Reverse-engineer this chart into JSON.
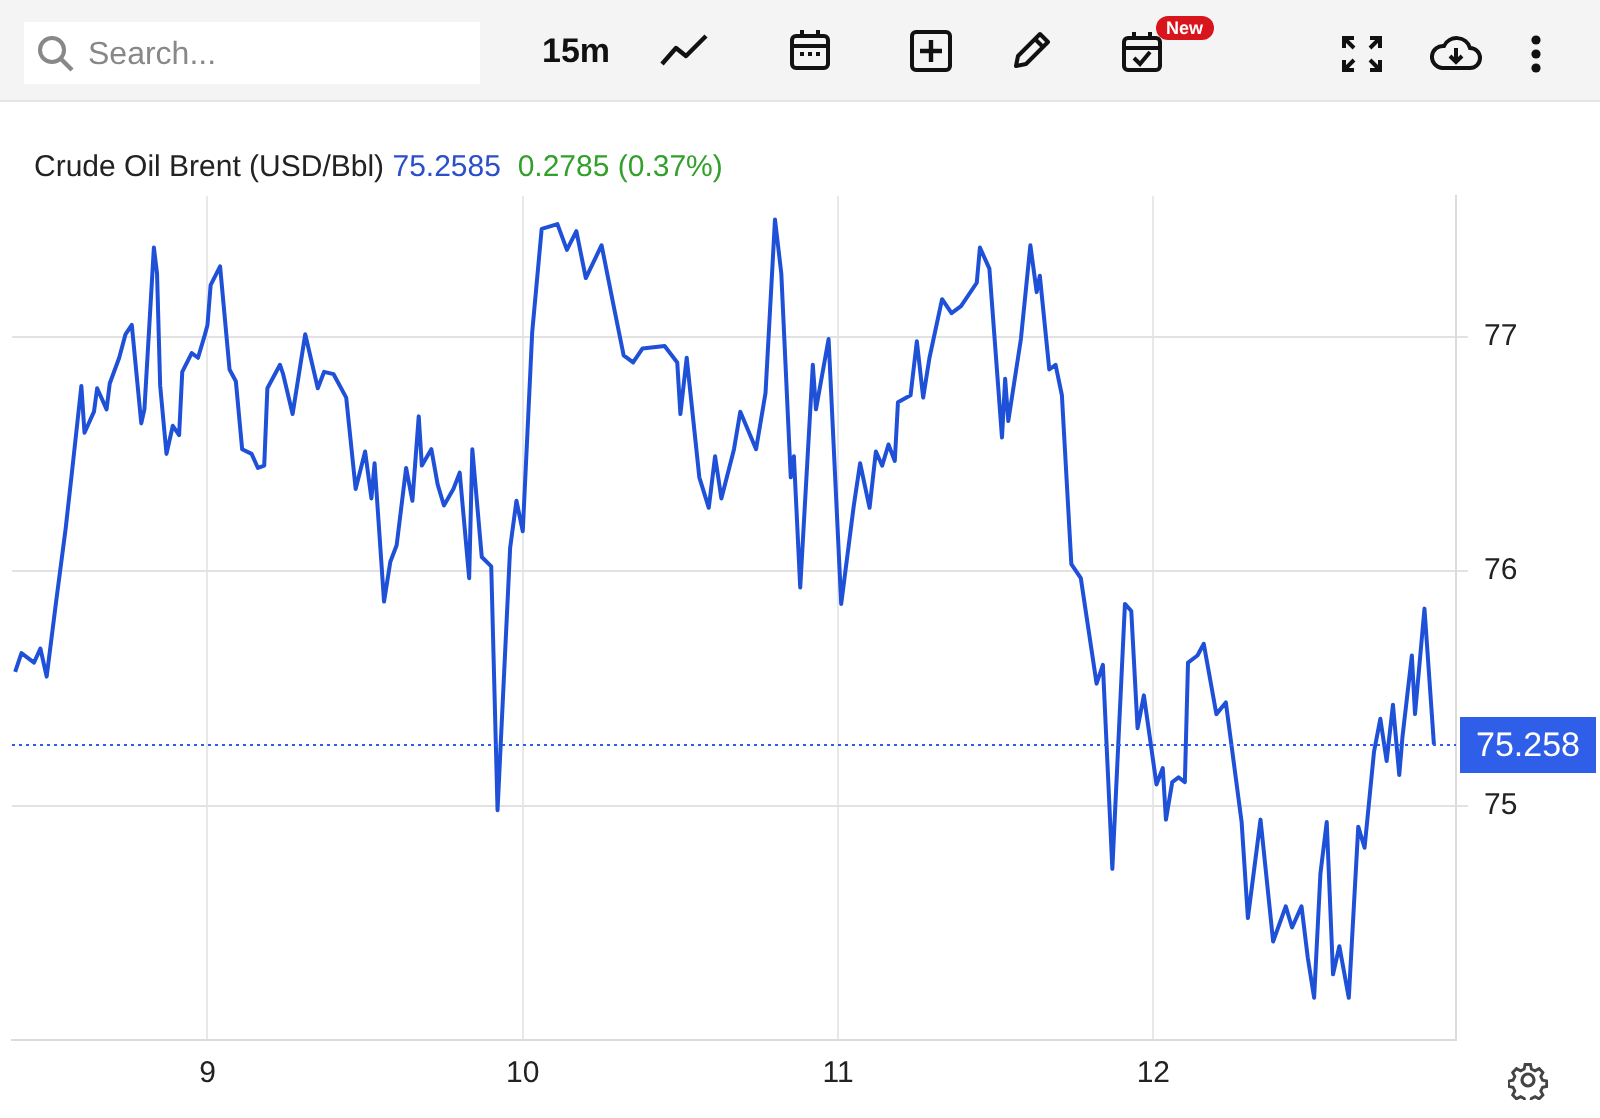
{
  "chart_data": {
    "type": "line",
    "title": "Crude Oil Brent (USD/Bbl)",
    "annotations": [
      "75.2585",
      "0.2785 (0.37%)",
      "Search...",
      "15m",
      "New"
    ],
    "x": [
      8.39,
      8.41,
      8.45,
      8.47,
      8.49,
      8.52,
      8.55,
      8.57,
      8.6,
      8.61,
      8.64,
      8.65,
      8.68,
      8.69,
      8.72,
      8.74,
      8.76,
      8.79,
      8.8,
      8.83,
      8.84,
      8.85,
      8.87,
      8.89,
      8.91,
      8.92,
      8.95,
      8.97,
      8.99,
      9.0,
      9.01,
      9.04,
      9.07,
      9.09,
      9.11,
      9.14,
      9.16,
      9.18,
      9.19,
      9.23,
      9.24,
      9.27,
      9.31,
      9.35,
      9.37,
      9.4,
      9.44,
      9.47,
      9.5,
      9.52,
      9.53,
      9.56,
      9.58,
      9.6,
      9.63,
      9.65,
      9.67,
      9.68,
      9.71,
      9.73,
      9.75,
      9.78,
      9.8,
      9.83,
      9.84,
      9.87,
      9.9,
      9.92,
      9.96,
      9.98,
      10.0,
      10.03,
      10.06,
      10.11,
      10.14,
      10.17,
      10.2,
      10.25,
      10.29,
      10.32,
      10.35,
      10.38,
      10.45,
      10.49,
      10.5,
      10.52,
      10.56,
      10.59,
      10.61,
      10.63,
      10.67,
      10.69,
      10.74,
      10.77,
      10.8,
      10.82,
      10.85,
      10.86,
      10.88,
      10.92,
      10.93,
      10.97,
      11.01,
      11.05,
      11.07,
      11.1,
      11.12,
      11.14,
      11.16,
      11.18,
      11.19,
      11.23,
      11.25,
      11.27,
      11.29,
      11.33,
      11.36,
      11.39,
      11.44,
      11.45,
      11.48,
      11.52,
      11.53,
      11.54,
      11.58,
      11.61,
      11.63,
      11.64,
      11.67,
      11.69,
      11.71,
      11.74,
      11.77,
      11.82,
      11.84,
      11.87,
      11.91,
      11.93,
      11.95,
      11.97,
      12.01,
      12.03,
      12.04,
      12.06,
      12.08,
      12.1,
      12.11,
      12.14,
      12.16,
      12.2,
      12.23,
      12.28,
      12.3,
      12.34,
      12.38,
      12.42,
      12.44,
      12.47,
      12.49,
      12.51,
      12.53,
      12.55,
      12.57,
      12.59,
      12.62,
      12.65,
      12.67,
      12.7,
      12.72,
      12.74,
      12.76,
      12.78,
      12.79,
      12.82,
      12.83,
      12.86,
      12.89
    ],
    "series": [
      {
        "color": "#1f50d8",
        "values": [
          75.57,
          75.65,
          75.61,
          75.67,
          75.55,
          75.87,
          76.18,
          76.42,
          76.79,
          76.59,
          76.68,
          76.78,
          76.69,
          76.8,
          76.91,
          77.01,
          77.05,
          76.63,
          76.69,
          77.38,
          77.27,
          76.79,
          76.5,
          76.62,
          76.58,
          76.85,
          76.93,
          76.91,
          77.0,
          77.05,
          77.22,
          77.3,
          76.86,
          76.81,
          76.52,
          76.5,
          76.44,
          76.45,
          76.78,
          76.88,
          76.84,
          76.67,
          77.01,
          76.78,
          76.85,
          76.84,
          76.74,
          76.35,
          76.51,
          76.31,
          76.46,
          75.87,
          76.04,
          76.11,
          76.44,
          76.3,
          76.66,
          76.45,
          76.52,
          76.37,
          76.28,
          76.35,
          76.42,
          75.97,
          76.52,
          76.06,
          76.02,
          74.98,
          76.1,
          76.3,
          76.17,
          77.02,
          77.46,
          77.48,
          77.37,
          77.45,
          77.25,
          77.39,
          77.12,
          76.92,
          76.89,
          76.95,
          76.96,
          76.89,
          76.67,
          76.91,
          76.4,
          76.27,
          76.49,
          76.31,
          76.52,
          76.68,
          76.52,
          76.76,
          77.5,
          77.27,
          76.4,
          76.49,
          75.93,
          76.88,
          76.69,
          76.99,
          75.86,
          76.28,
          76.46,
          76.27,
          76.51,
          76.45,
          76.54,
          76.47,
          76.72,
          76.75,
          76.98,
          76.74,
          76.91,
          77.16,
          77.1,
          77.13,
          77.23,
          77.38,
          77.29,
          76.57,
          76.82,
          76.64,
          76.99,
          77.39,
          77.19,
          77.26,
          76.86,
          76.88,
          76.75,
          76.03,
          75.97,
          75.52,
          75.6,
          74.73,
          75.86,
          75.83,
          75.33,
          75.47,
          75.09,
          75.16,
          74.94,
          75.1,
          75.12,
          75.1,
          75.61,
          75.64,
          75.69,
          75.39,
          75.44,
          74.93,
          74.52,
          74.94,
          74.42,
          74.57,
          74.48,
          74.57,
          74.35,
          74.18,
          74.71,
          74.93,
          74.28,
          74.4,
          74.18,
          74.91,
          74.82,
          75.23,
          75.37,
          75.19,
          75.43,
          75.13,
          75.29,
          75.64,
          75.39,
          75.84,
          75.26
        ]
      }
    ],
    "xlim": [
      8.38,
      12.96
    ],
    "xticks": [
      9,
      10,
      11,
      12
    ],
    "ylim": [
      74.0,
      77.6
    ],
    "yticks": [
      75,
      76,
      77
    ],
    "ref_lines": [
      {
        "axis": "y",
        "value": 75.258,
        "label": "75.258",
        "color": "#2f5fe8",
        "line_style": "dotted"
      }
    ],
    "grid": true,
    "legend": false,
    "marker": "none",
    "line_style": "solid"
  }
}
